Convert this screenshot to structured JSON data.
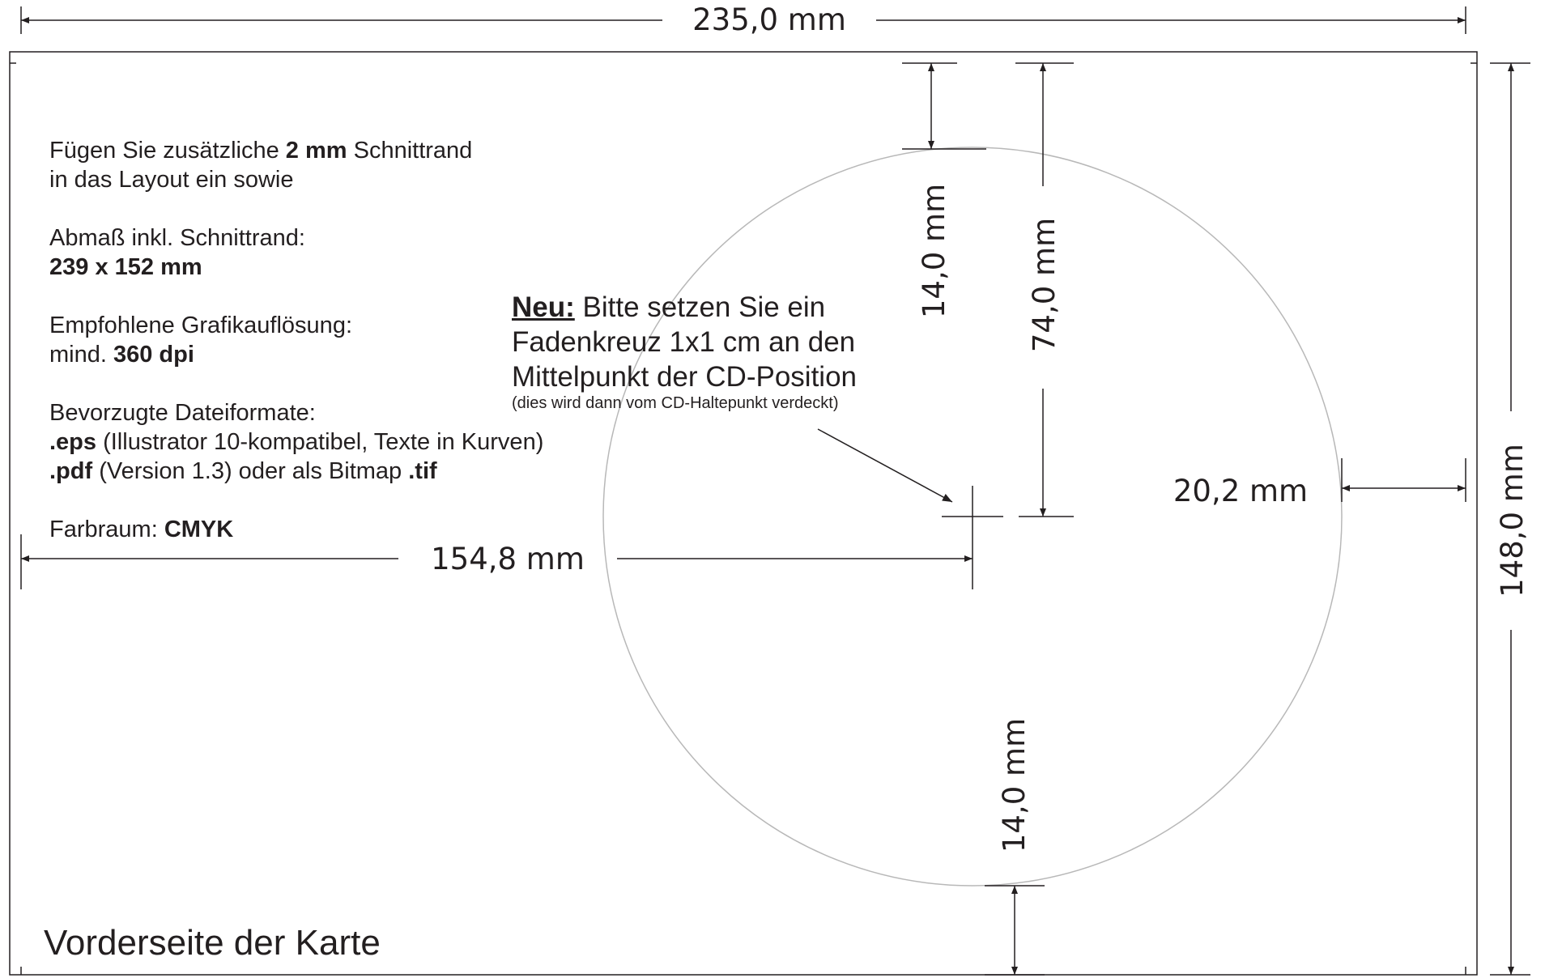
{
  "dimensions": {
    "top_width": "235,0 mm",
    "right_height": "148,0 mm",
    "top_margin": "14,0 mm",
    "to_center_vertical": "74,0 mm",
    "to_center_horizontal": "154,8 mm",
    "right_margin": "20,2 mm",
    "bottom_margin": "14,0 mm"
  },
  "instructions": {
    "bleed": {
      "pre": "Fügen Sie zusätzliche ",
      "bold": "2 mm",
      "post": " Schnittrand",
      "line2": "in das Layout ein sowie"
    },
    "size": {
      "label": "Abmaß inkl. Schnittrand:",
      "value": "239 x 152 mm"
    },
    "resolution": {
      "label": "Empfohlene Grafikauflösung:",
      "pre": "mind. ",
      "value": "360 dpi"
    },
    "formats": {
      "label": "Bevorzugte Dateiformate:",
      "eps": ".eps",
      "eps_desc": " (Illustrator 10-kompatibel, Texte in Kurven)",
      "pdf": ".pdf",
      "pdf_desc": " (Version 1.3) oder als Bitmap ",
      "tif": ".tif"
    },
    "color": {
      "label": "Farbraum: ",
      "value": "CMYK"
    }
  },
  "note": {
    "lead": "Neu:",
    "line1": " Bitte setzen Sie ein",
    "line2": "Fadenkreuz 1x1 cm an den",
    "line3": "Mittelpunkt der CD-Position",
    "small": "(dies wird dann vom CD-Haltepunkt verdeckt)"
  },
  "footer": {
    "front_label": "Vorderseite der Karte"
  },
  "colors": {
    "line": "#231f20",
    "circle": "#b8b8b8",
    "background": "#ffffff"
  }
}
